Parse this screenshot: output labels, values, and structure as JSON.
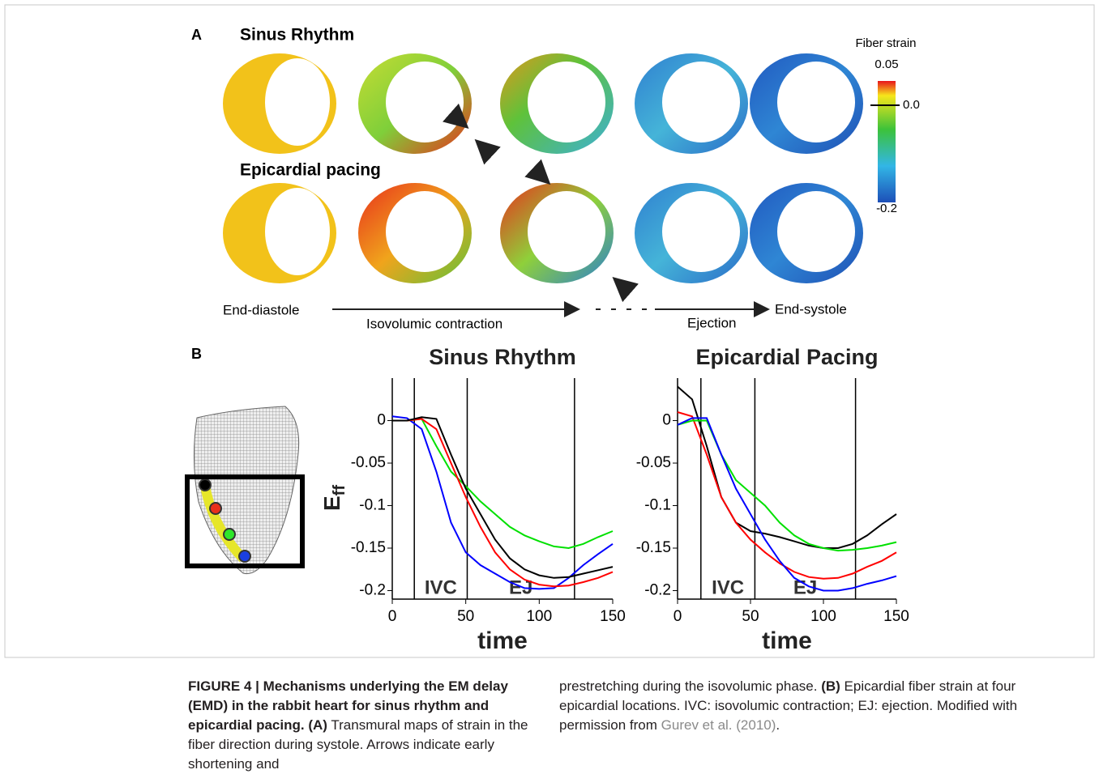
{
  "panel_a": {
    "label": "A",
    "row_titles": [
      "Sinus Rhythm",
      "Epicardial pacing"
    ],
    "colorbar": {
      "title": "Fiber strain",
      "ticks": [
        0.05,
        {
          "value": 0.0,
          "label": "0.0"
        },
        -0.2
      ]
    },
    "phases": [
      "End-diastole",
      "Isovolumic contraction",
      "Ejection",
      "End-systole"
    ]
  },
  "panel_b": {
    "label": "B"
  },
  "chart_data": [
    {
      "type": "line",
      "title": "Sinus Rhythm",
      "xlabel": "time",
      "ylabel": "E",
      "ylabel_sub": "ff",
      "annotations": [
        "IVC",
        "EJ"
      ],
      "phase_lines": [
        15,
        51,
        124
      ],
      "xlim": [
        0,
        150
      ],
      "xticks": [
        0,
        50,
        100,
        150
      ],
      "ylim": [
        -0.21,
        0.05
      ],
      "yticks": [
        0,
        -0.05,
        -0.1,
        -0.15,
        -0.2
      ],
      "x": [
        0,
        10,
        20,
        30,
        40,
        50,
        60,
        70,
        80,
        90,
        100,
        110,
        120,
        130,
        140,
        150
      ],
      "series": [
        {
          "color": "#0000ff",
          "values": [
            0.005,
            0.003,
            -0.01,
            -0.06,
            -0.12,
            -0.155,
            -0.17,
            -0.18,
            -0.19,
            -0.197,
            -0.198,
            -0.197,
            -0.185,
            -0.17,
            -0.157,
            -0.145
          ]
        },
        {
          "color": "#00e000",
          "values": [
            0,
            0,
            0.002,
            -0.03,
            -0.06,
            -0.077,
            -0.095,
            -0.11,
            -0.125,
            -0.135,
            -0.142,
            -0.148,
            -0.15,
            -0.145,
            -0.137,
            -0.13
          ]
        },
        {
          "color": "#ff0000",
          "values": [
            0,
            0,
            0.002,
            -0.01,
            -0.05,
            -0.09,
            -0.125,
            -0.155,
            -0.175,
            -0.187,
            -0.193,
            -0.195,
            -0.194,
            -0.19,
            -0.185,
            -0.178
          ]
        },
        {
          "color": "#000000",
          "values": [
            0,
            0,
            0.004,
            0.002,
            -0.04,
            -0.08,
            -0.11,
            -0.14,
            -0.162,
            -0.175,
            -0.182,
            -0.185,
            -0.184,
            -0.18,
            -0.176,
            -0.172
          ]
        }
      ]
    },
    {
      "type": "line",
      "title": "Epicardial Pacing",
      "xlabel": "time",
      "annotations": [
        "IVC",
        "EJ"
      ],
      "phase_lines": [
        16,
        53,
        122
      ],
      "xlim": [
        0,
        150
      ],
      "xticks": [
        0,
        50,
        100,
        150
      ],
      "ylim": [
        -0.21,
        0.05
      ],
      "yticks": [
        0,
        -0.05,
        -0.1,
        -0.15,
        -0.2
      ],
      "x": [
        0,
        10,
        20,
        30,
        40,
        50,
        60,
        70,
        80,
        90,
        100,
        110,
        120,
        130,
        140,
        150
      ],
      "series": [
        {
          "color": "#000000",
          "values": [
            0.04,
            0.025,
            -0.03,
            -0.09,
            -0.12,
            -0.13,
            -0.133,
            -0.137,
            -0.142,
            -0.147,
            -0.15,
            -0.15,
            -0.145,
            -0.135,
            -0.122,
            -0.11
          ]
        },
        {
          "color": "#ff0000",
          "values": [
            0.01,
            0.005,
            -0.04,
            -0.09,
            -0.12,
            -0.14,
            -0.155,
            -0.168,
            -0.178,
            -0.184,
            -0.186,
            -0.185,
            -0.18,
            -0.172,
            -0.165,
            -0.155
          ]
        },
        {
          "color": "#00e000",
          "values": [
            -0.005,
            0,
            0,
            -0.04,
            -0.07,
            -0.085,
            -0.1,
            -0.12,
            -0.135,
            -0.145,
            -0.15,
            -0.153,
            -0.152,
            -0.15,
            -0.147,
            -0.143
          ]
        },
        {
          "color": "#0000ff",
          "values": [
            -0.005,
            0.003,
            0.003,
            -0.04,
            -0.08,
            -0.11,
            -0.14,
            -0.165,
            -0.185,
            -0.195,
            -0.2,
            -0.2,
            -0.197,
            -0.192,
            -0.188,
            -0.183
          ]
        }
      ]
    }
  ],
  "caption": {
    "title": "FIGURE 4 | Mechanisms underlying the EM delay (EMD) in the rabbit heart for sinus rhythm and epicardial pacing.",
    "a_label": "(A)",
    "a_text_1": "Transmural maps of strain in the fiber direction during systole. Arrows indicate early shortening and",
    "a_text_2": "prestretching during the isovolumic phase.",
    "b_label": "(B)",
    "b_text": "Epicardial fiber strain at four epicardial locations. IVC: isovolumic contraction; EJ: ejection. Modified with permission from",
    "citation": "Gurev et al. (2010)",
    "end": "."
  }
}
